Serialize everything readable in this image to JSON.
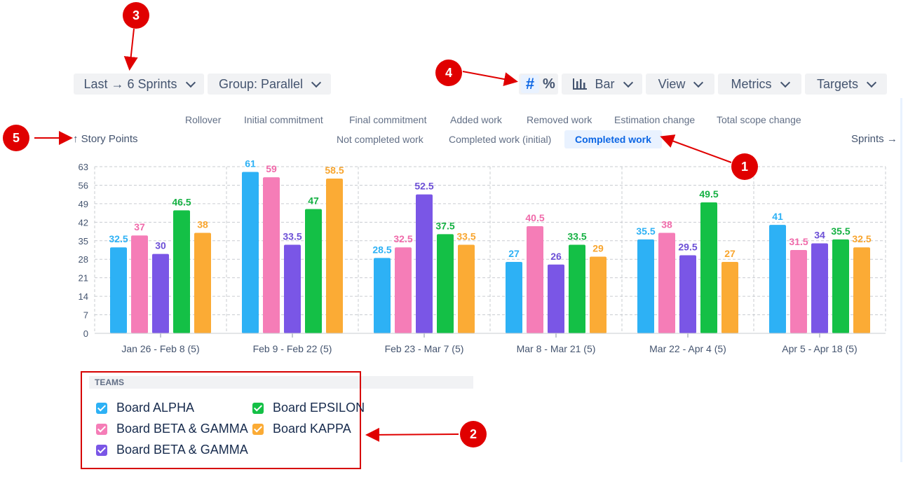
{
  "toolbar": {
    "range_label": "Last → 6 Sprints",
    "group_label": "Group: Parallel",
    "mode_count_icon": "#",
    "mode_percent_icon": "%",
    "chart_type_label": "Bar",
    "view_label": "View",
    "metrics_label": "Metrics",
    "targets_label": "Targets"
  },
  "metrics": {
    "row1": [
      "Rollover",
      "Initial commitment",
      "Final commitment",
      "Added work",
      "Removed work",
      "Estimation change",
      "Total scope change"
    ],
    "row2": [
      "Not completed work",
      "Completed work (initial)",
      "Completed work"
    ],
    "active": "Completed work"
  },
  "axes": {
    "y_title": "↑ Story Points",
    "x_title": "Sprints →"
  },
  "legend": {
    "title": "TEAMS",
    "items": [
      {
        "label": "Board ALPHA",
        "color": "#2db1f5"
      },
      {
        "label": "Board BETA & GAMMA",
        "color": "#f57db7"
      },
      {
        "label": "Board BETA & GAMMA",
        "color": "#7a56e6"
      },
      {
        "label": "Board EPSILON",
        "color": "#14c046"
      },
      {
        "label": "Board KAPPA",
        "color": "#fbab35"
      }
    ]
  },
  "markers": [
    "1",
    "2",
    "3",
    "4",
    "5"
  ],
  "chart_data": {
    "type": "bar",
    "categories": [
      "Jan 26 - Feb 8 (5)",
      "Feb 9 - Feb 22 (5)",
      "Feb 23 - Mar 7 (5)",
      "Mar 8 - Mar 21 (5)",
      "Mar 22 - Apr 4 (5)",
      "Apr 5 - Apr 18 (5)"
    ],
    "series": [
      {
        "name": "Board ALPHA",
        "color": "#2db1f5",
        "label_color": "#2db1f5",
        "values": [
          32.5,
          61,
          28.5,
          27,
          35.5,
          41
        ]
      },
      {
        "name": "Board BETA & GAMMA",
        "color": "#f57db7",
        "label_color": "#f06aaa",
        "values": [
          37,
          59,
          32.5,
          40.5,
          38,
          31.5
        ]
      },
      {
        "name": "Board BETA & GAMMA",
        "color": "#7a56e6",
        "label_color": "#6c4fd6",
        "values": [
          30,
          33.5,
          52.5,
          26,
          29.5,
          34
        ]
      },
      {
        "name": "Board EPSILON",
        "color": "#14c046",
        "label_color": "#14b042",
        "values": [
          46.5,
          47,
          37.5,
          33.5,
          49.5,
          35.5
        ]
      },
      {
        "name": "Board KAPPA",
        "color": "#fbab35",
        "label_color": "#f8a52e",
        "values": [
          38,
          58.5,
          33.5,
          29,
          27,
          32.5
        ]
      }
    ],
    "yticks": [
      0,
      7,
      14,
      21,
      28,
      35,
      42,
      49,
      56,
      63
    ],
    "ylim": [
      0,
      63
    ],
    "ylabel": "↑ Story Points",
    "xlabel": "Sprints →",
    "grid": true
  }
}
